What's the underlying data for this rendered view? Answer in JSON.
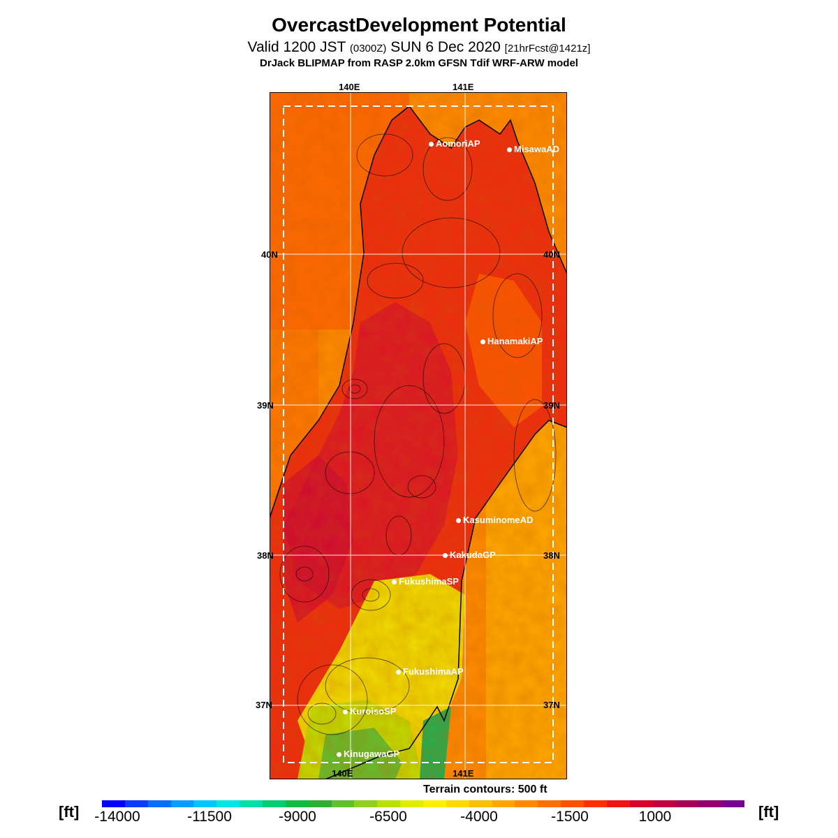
{
  "header": {
    "title": "OvercastDevelopment Potential",
    "valid_prefix": "Valid 1200 JST",
    "valid_utc": "(0300Z)",
    "valid_date": "SUN 6 Dec 2020",
    "forecast": "[21hrFcst@1421z]",
    "model_line": "DrJack BLIPMAP from RASP 2.0km GFSN Tdif WRF-ARW model"
  },
  "map": {
    "lon_labels": [
      "140E",
      "141E"
    ],
    "lat_labels": [
      "40N",
      "39N",
      "38N",
      "37N"
    ],
    "stations": [
      {
        "name": "AomoriAP"
      },
      {
        "name": "MisawaAD"
      },
      {
        "name": "HanamakiAP"
      },
      {
        "name": "KasuminomeAD"
      },
      {
        "name": "KakudaGP"
      },
      {
        "name": "FukushimaSP"
      },
      {
        "name": "FukushimaAP"
      },
      {
        "name": "KuroisoSP"
      },
      {
        "name": "KinugawaGP"
      }
    ],
    "terrain_note": "Terrain contours: 500 ft"
  },
  "colorbar": {
    "unit": "[ft]",
    "ticks": [
      "-14000",
      "-11500",
      "-9000",
      "-6500",
      "-4000",
      "-1500",
      "1000"
    ],
    "colors": [
      "#0000ff",
      "#0a3cff",
      "#0c6cff",
      "#0a9cff",
      "#00c8ff",
      "#00e6e6",
      "#00e0a8",
      "#00cc70",
      "#10bb40",
      "#30b030",
      "#60c030",
      "#90d020",
      "#b8e000",
      "#e0ec00",
      "#fff000",
      "#ffd800",
      "#ffbf00",
      "#ffa600",
      "#ff8c00",
      "#ff7000",
      "#ff5000",
      "#ff3000",
      "#f01414",
      "#d80028",
      "#c00040",
      "#a80058",
      "#900070",
      "#780090"
    ]
  }
}
